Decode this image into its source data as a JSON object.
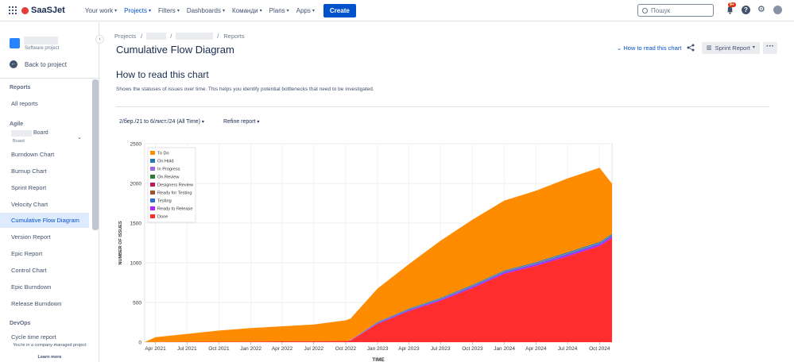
{
  "topbar": {
    "logo": "SaaSJet",
    "nav": [
      {
        "label": "Your work"
      },
      {
        "label": "Projects"
      },
      {
        "label": "Filters"
      },
      {
        "label": "Dashboards"
      },
      {
        "label": "Команди"
      },
      {
        "label": "Plans"
      },
      {
        "label": "Apps"
      }
    ],
    "create": "Create",
    "search_placeholder": "Пошук",
    "notif_count": "9+",
    "help": "?"
  },
  "sidebar": {
    "project_type": "Software project",
    "back": "Back to project",
    "reports_title": "Reports",
    "all_reports": "All reports",
    "agile_title": "Agile",
    "board_name": "Board",
    "board_sub": "Board",
    "items": [
      {
        "label": "Burndown Chart"
      },
      {
        "label": "Burnup Chart"
      },
      {
        "label": "Sprint Report"
      },
      {
        "label": "Velocity Chart"
      },
      {
        "label": "Cumulative Flow Diagram"
      },
      {
        "label": "Version Report"
      },
      {
        "label": "Epic Report"
      },
      {
        "label": "Control Chart"
      },
      {
        "label": "Epic Burndown"
      },
      {
        "label": "Release Burndown"
      }
    ],
    "devops_title": "DevOps",
    "devops_item": "Cycle time report",
    "footer": "You're in a company-managed project",
    "learn_more": "Learn more"
  },
  "main": {
    "breadcrumb": {
      "projects": "Projects",
      "reports": "Reports"
    },
    "title": "Cumulative Flow Diagram",
    "how_link": "How to read this chart",
    "sprint_button": "Sprint Report",
    "how_title": "How to read this chart",
    "how_desc": "Shows the statuses of issues over time. This helps you identify potential bottlenecks that need to be investigated.",
    "range": "2/бер./21 to 6/лист./24 (All Time)",
    "refine": "Refine report"
  },
  "chart_data": {
    "type": "area",
    "xlabel": "TIME",
    "ylabel": "NUMBER OF ISSUES",
    "ylim": [
      0,
      2500
    ],
    "yticks": [
      0,
      500,
      1000,
      1500,
      2000,
      2500
    ],
    "x": [
      "2021-03-01",
      "2021-04-01",
      "2021-07-01",
      "2021-10-01",
      "2022-01-01",
      "2022-04-01",
      "2022-07-01",
      "2022-10-01",
      "2022-10-15",
      "2023-01-01",
      "2023-04-01",
      "2023-07-01",
      "2023-10-01",
      "2024-01-01",
      "2024-04-01",
      "2024-07-01",
      "2024-10-01",
      "2024-11-06"
    ],
    "xtick_labels": [
      "Apr 2021",
      "Jul 2021",
      "Oct 2021",
      "Jan 2022",
      "Apr 2022",
      "Jul 2022",
      "Oct 2022",
      "Jan 2023",
      "Apr 2023",
      "Jul 2023",
      "Oct 2023",
      "Jan 2024",
      "Apr 2024",
      "Jul 2024",
      "Oct 2024"
    ],
    "legend_position": "top-left",
    "series": [
      {
        "name": "Done",
        "color": "#ff2d2d",
        "values": [
          0,
          2,
          4,
          6,
          8,
          10,
          12,
          15,
          20,
          230,
          390,
          520,
          680,
          860,
          960,
          1080,
          1210,
          1310
        ]
      },
      {
        "name": "Ready to Release",
        "color": "#b026ff",
        "values": [
          0,
          0,
          0,
          0,
          0,
          0,
          0,
          0,
          2,
          8,
          10,
          12,
          14,
          16,
          18,
          20,
          20,
          20
        ]
      },
      {
        "name": "Testing",
        "color": "#2f6bd8",
        "values": [
          0,
          0,
          0,
          0,
          0,
          0,
          0,
          0,
          2,
          6,
          8,
          8,
          10,
          10,
          10,
          12,
          12,
          12
        ]
      },
      {
        "name": "Ready for Testing",
        "color": "#a0522d",
        "values": [
          0,
          0,
          0,
          0,
          0,
          0,
          0,
          0,
          1,
          2,
          2,
          2,
          3,
          3,
          3,
          3,
          3,
          3
        ]
      },
      {
        "name": "Designers Review",
        "color": "#c2185b",
        "values": [
          0,
          0,
          0,
          0,
          0,
          0,
          0,
          0,
          0,
          1,
          1,
          1,
          1,
          1,
          1,
          1,
          1,
          1
        ]
      },
      {
        "name": "On Review",
        "color": "#2e7d32",
        "values": [
          0,
          0,
          0,
          0,
          0,
          0,
          0,
          0,
          0,
          1,
          1,
          1,
          1,
          1,
          1,
          1,
          1,
          1
        ]
      },
      {
        "name": "In Progress",
        "color": "#9c6ade",
        "values": [
          0,
          0,
          0,
          0,
          0,
          0,
          0,
          0,
          1,
          2,
          2,
          3,
          3,
          3,
          3,
          3,
          3,
          3
        ]
      },
      {
        "name": "On Hold",
        "color": "#1f78b4",
        "values": [
          0,
          0,
          0,
          0,
          0,
          0,
          0,
          0,
          2,
          6,
          8,
          10,
          10,
          10,
          12,
          12,
          12,
          12
        ]
      },
      {
        "name": "To Do",
        "color": "#ff8c00",
        "values": [
          0,
          60,
          100,
          140,
          170,
          190,
          210,
          260,
          270,
          420,
          560,
          720,
          820,
          880,
          900,
          930,
          935,
          635
        ]
      }
    ],
    "colors": {
      "to_do": "#ff8c00",
      "done": "#ff2d2d"
    }
  }
}
